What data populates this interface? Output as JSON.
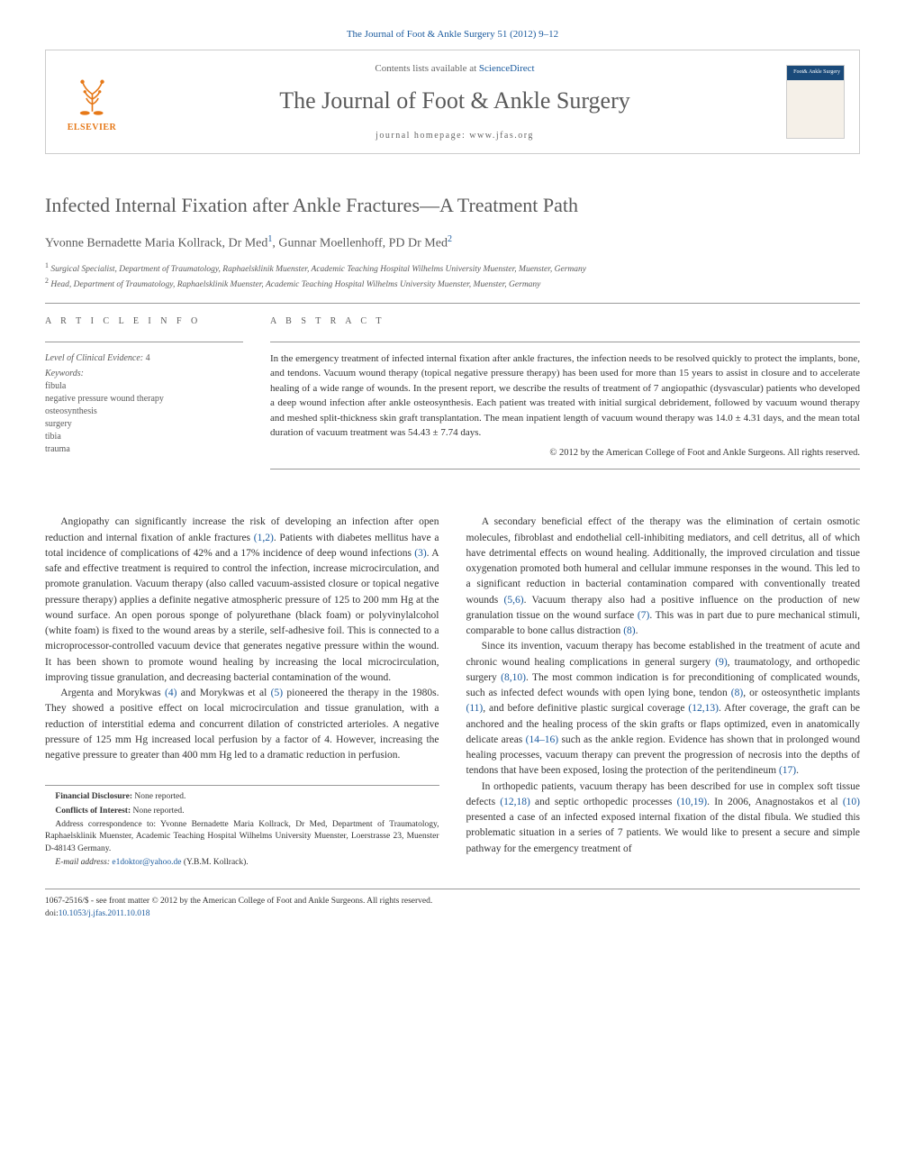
{
  "header": {
    "citation": "The Journal of Foot & Ankle Surgery 51 (2012) 9–12",
    "contents_prefix": "Contents lists available at ",
    "contents_link": "ScienceDirect",
    "journal_name": "The Journal of Foot & Ankle Surgery",
    "homepage_prefix": "journal homepage: ",
    "homepage_url": "www.jfas.org",
    "elsevier_label": "ELSEVIER"
  },
  "article": {
    "title": "Infected Internal Fixation after Ankle Fractures—A Treatment Path",
    "authors": [
      {
        "name": "Yvonne Bernadette Maria Kollrack, Dr Med",
        "sup": "1"
      },
      {
        "name": "Gunnar Moellenhoff, PD Dr Med",
        "sup": "2"
      }
    ],
    "affiliations": [
      {
        "sup": "1",
        "text": "Surgical Specialist, Department of Traumatology, Raphaelsklinik Muenster, Academic Teaching Hospital Wilhelms University Muenster, Muenster, Germany"
      },
      {
        "sup": "2",
        "text": "Head, Department of Traumatology, Raphaelsklinik Muenster, Academic Teaching Hospital Wilhelms University Muenster, Muenster, Germany"
      }
    ]
  },
  "article_info": {
    "heading": "A R T I C L E  I N F O",
    "level_label": "Level of Clinical Evidence:",
    "level_value": "4",
    "keywords_label": "Keywords:",
    "keywords": [
      "fibula",
      "negative pressure wound therapy",
      "osteosynthesis",
      "surgery",
      "tibia",
      "trauma"
    ]
  },
  "abstract": {
    "heading": "A B S T R A C T",
    "text": "In the emergency treatment of infected internal fixation after ankle fractures, the infection needs to be resolved quickly to protect the implants, bone, and tendons. Vacuum wound therapy (topical negative pressure therapy) has been used for more than 15 years to assist in closure and to accelerate healing of a wide range of wounds. In the present report, we describe the results of treatment of 7 angiopathic (dysvascular) patients who developed a deep wound infection after ankle osteosynthesis. Each patient was treated with initial surgical debridement, followed by vacuum wound therapy and meshed split-thickness skin graft transplantation. The mean inpatient length of vacuum wound therapy was 14.0 ± 4.31 days, and the mean total duration of vacuum treatment was 54.43 ± 7.74 days.",
    "copyright": "© 2012 by the American College of Foot and Ankle Surgeons. All rights reserved."
  },
  "body": {
    "left": [
      "Angiopathy can significantly increase the risk of developing an infection after open reduction and internal fixation of ankle fractures (1,2). Patients with diabetes mellitus have a total incidence of complications of 42% and a 17% incidence of deep wound infections (3). A safe and effective treatment is required to control the infection, increase microcirculation, and promote granulation. Vacuum therapy (also called vacuum-assisted closure or topical negative pressure therapy) applies a definite negative atmospheric pressure of 125 to 200 mm Hg at the wound surface. An open porous sponge of polyurethane (black foam) or polyvinylalcohol (white foam) is fixed to the wound areas by a sterile, self-adhesive foil. This is connected to a microprocessor-controlled vacuum device that generates negative pressure within the wound. It has been shown to promote wound healing by increasing the local microcirculation, improving tissue granulation, and decreasing bacterial contamination of the wound.",
      "Argenta and Morykwas (4) and Morykwas et al (5) pioneered the therapy in the 1980s. They showed a positive effect on local microcirculation and tissue granulation, with a reduction of interstitial edema and concurrent dilation of constricted arterioles. A negative pressure of 125 mm Hg increased local perfusion by a factor of 4. However, increasing the negative pressure to greater than 400 mm Hg led to a dramatic reduction in perfusion."
    ],
    "right": [
      "A secondary beneficial effect of the therapy was the elimination of certain osmotic molecules, fibroblast and endothelial cell-inhibiting mediators, and cell detritus, all of which have detrimental effects on wound healing. Additionally, the improved circulation and tissue oxygenation promoted both humeral and cellular immune responses in the wound. This led to a significant reduction in bacterial contamination compared with conventionally treated wounds (5,6). Vacuum therapy also had a positive influence on the production of new granulation tissue on the wound surface (7). This was in part due to pure mechanical stimuli, comparable to bone callus distraction (8).",
      "Since its invention, vacuum therapy has become established in the treatment of acute and chronic wound healing complications in general surgery (9), traumatology, and orthopedic surgery (8,10). The most common indication is for preconditioning of complicated wounds, such as infected defect wounds with open lying bone, tendon (8), or osteosynthetic implants (11), and before definitive plastic surgical coverage (12,13). After coverage, the graft can be anchored and the healing process of the skin grafts or flaps optimized, even in anatomically delicate areas (14–16) such as the ankle region. Evidence has shown that in prolonged wound healing processes, vacuum therapy can prevent the progression of necrosis into the depths of tendons that have been exposed, losing the protection of the peritendineum (17).",
      "In orthopedic patients, vacuum therapy has been described for use in complex soft tissue defects (12,18) and septic orthopedic processes (10,19). In 2006, Anagnostakos et al (10) presented a case of an infected exposed internal fixation of the distal fibula. We studied this problematic situation in a series of 7 patients. We would like to present a secure and simple pathway for the emergency treatment of"
    ]
  },
  "footnotes": {
    "financial": "Financial Disclosure: None reported.",
    "conflicts": "Conflicts of Interest: None reported.",
    "address": "Address correspondence to: Yvonne Bernadette Maria Kollrack, Dr Med, Department of Traumatology, Raphaelsklinik Muenster, Academic Teaching Hospital Wilhelms University Muenster, Loerstrasse 23, Muenster D-48143 Germany.",
    "email_label": "E-mail address:",
    "email": "e1doktor@yahoo.de",
    "email_suffix": "(Y.B.M. Kollrack)."
  },
  "footer": {
    "copyright": "1067-2516/$ - see front matter © 2012 by the American College of Foot and Ankle Surgeons. All rights reserved.",
    "doi_label": "doi:",
    "doi": "10.1053/j.jfas.2011.10.018"
  },
  "colors": {
    "link": "#1a5a9e",
    "orange": "#e67817",
    "text": "#333333",
    "heading": "#5a5a5a",
    "rule": "#999999"
  },
  "refs_linked": [
    "(1,2)",
    "(3)",
    "(4)",
    "(5)",
    "(5,6)",
    "(7)",
    "(8)",
    "(9)",
    "(8,10)",
    "(11)",
    "(12,13)",
    "(14–16)",
    "(17)",
    "(12,18)",
    "(10,19)",
    "(10)"
  ]
}
